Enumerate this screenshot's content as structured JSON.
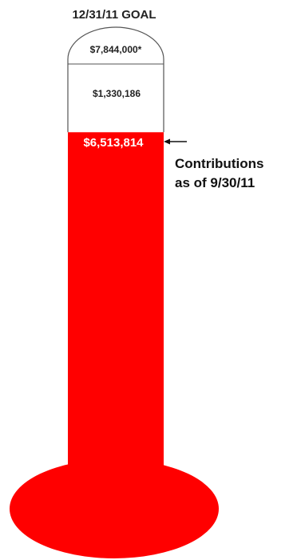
{
  "chart_data": {
    "type": "bar",
    "title": "12/31/11 GOAL",
    "goal": 7844000,
    "goal_label": "$7,844,000*",
    "contributions": 6513814,
    "contributions_label": "$6,513,814",
    "remaining": 1330186,
    "remaining_label": "$1,330,186",
    "annotation_line1": "Contributions",
    "annotation_line2": "as of 9/30/11",
    "colors": {
      "fill": "#ff0000",
      "outline": "#555555",
      "text": "#222222",
      "fill_text": "#ffffff"
    }
  }
}
